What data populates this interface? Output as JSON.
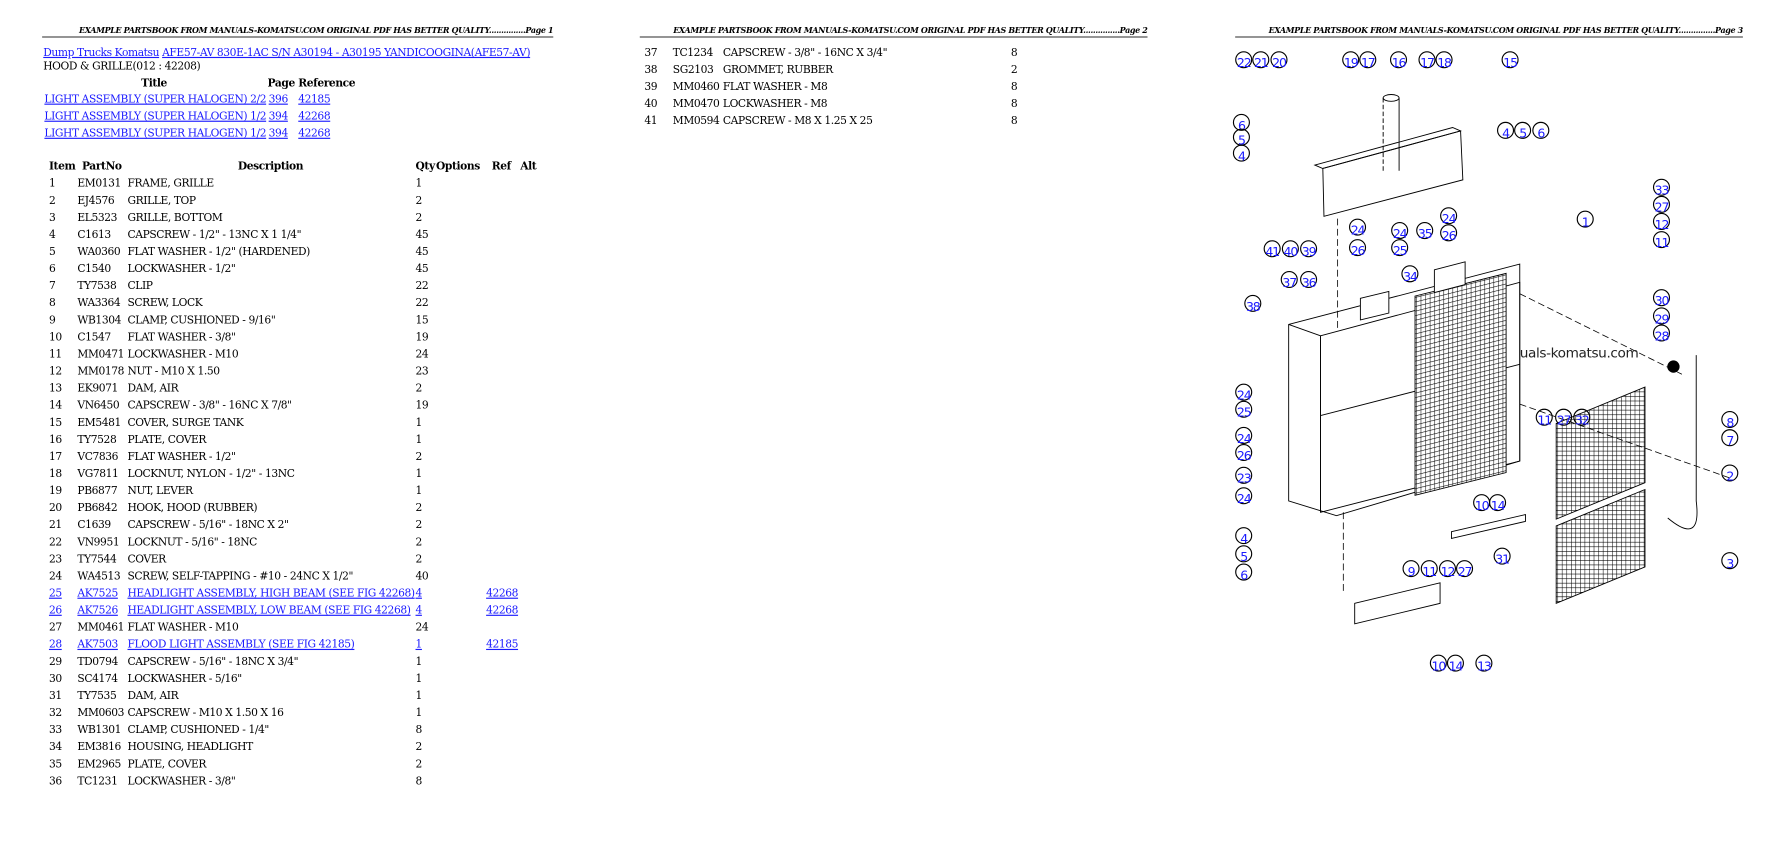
{
  "header_text": "EXAMPLE PARTSBOOK FROM MANUALS-KOMATSU.COM ORIGINAL PDF HAS BETTER QUALITY...............",
  "pages": [
    "Page 1",
    "Page 2",
    "Page 3"
  ],
  "breadcrumb": {
    "category": "Dump Trucks Komatsu",
    "model": "AFE57-AV 830E-1AC S/N A30194 - A30195 YANDICOOGINA(AFE57-AV)"
  },
  "section_title": "HOOD & GRILLE(012 : 42208)",
  "ref_table": {
    "headers": {
      "title": "Title",
      "page": "Page",
      "reference": "Reference"
    },
    "rows": [
      {
        "title": "LIGHT ASSEMBLY (SUPER HALOGEN) 2/2",
        "page": "396",
        "reference": "42185"
      },
      {
        "title": "LIGHT ASSEMBLY (SUPER HALOGEN) 1/2",
        "page": "394",
        "reference": "42268"
      },
      {
        "title": "LIGHT ASSEMBLY (SUPER HALOGEN) 1/2",
        "page": "394",
        "reference": "42268"
      }
    ]
  },
  "parts_table": {
    "headers": {
      "item": "Item",
      "partno": "PartNo",
      "description": "Description",
      "qty": "Qty",
      "options": "Options",
      "ref": "Ref",
      "alt": "Alt"
    },
    "rows": [
      {
        "item": "1",
        "partno": "EM0131",
        "description": "FRAME, GRILLE",
        "qty": "1"
      },
      {
        "item": "2",
        "partno": "EJ4576",
        "description": "GRILLE, TOP",
        "qty": "2"
      },
      {
        "item": "3",
        "partno": "EL5323",
        "description": "GRILLE, BOTTOM",
        "qty": "2"
      },
      {
        "item": "4",
        "partno": "C1613",
        "description": "CAPSCREW - 1/2\" - 13NC X 1 1/4\"",
        "qty": "45"
      },
      {
        "item": "5",
        "partno": "WA0360",
        "description": "FLAT WASHER - 1/2\" (HARDENED)",
        "qty": "45"
      },
      {
        "item": "6",
        "partno": "C1540",
        "description": "LOCKWASHER - 1/2\"",
        "qty": "45"
      },
      {
        "item": "7",
        "partno": "TY7538",
        "description": "CLIP",
        "qty": "22"
      },
      {
        "item": "8",
        "partno": "WA3364",
        "description": "SCREW, LOCK",
        "qty": "22"
      },
      {
        "item": "9",
        "partno": "WB1304",
        "description": "CLAMP, CUSHIONED - 9/16\"",
        "qty": "15"
      },
      {
        "item": "10",
        "partno": "C1547",
        "description": "FLAT WASHER - 3/8\"",
        "qty": "19"
      },
      {
        "item": "11",
        "partno": "MM0471",
        "description": "LOCKWASHER - M10",
        "qty": "24"
      },
      {
        "item": "12",
        "partno": "MM0178",
        "description": "NUT - M10 X 1.50",
        "qty": "23"
      },
      {
        "item": "13",
        "partno": "EK9071",
        "description": "DAM, AIR",
        "qty": "2"
      },
      {
        "item": "14",
        "partno": "VN6450",
        "description": "CAPSCREW - 3/8\" - 16NC X 7/8\"",
        "qty": "19"
      },
      {
        "item": "15",
        "partno": "EM5481",
        "description": "COVER, SURGE TANK",
        "qty": "1"
      },
      {
        "item": "16",
        "partno": "TY7528",
        "description": "PLATE, COVER",
        "qty": "1"
      },
      {
        "item": "17",
        "partno": "VC7836",
        "description": "FLAT WASHER - 1/2\"",
        "qty": "2"
      },
      {
        "item": "18",
        "partno": "VG7811",
        "description": "LOCKNUT, NYLON - 1/2\" - 13NC",
        "qty": "1"
      },
      {
        "item": "19",
        "partno": "PB6877",
        "description": "NUT, LEVER",
        "qty": "1"
      },
      {
        "item": "20",
        "partno": "PB6842",
        "description": "HOOK, HOOD (RUBBER)",
        "qty": "2"
      },
      {
        "item": "21",
        "partno": "C1639",
        "description": "CAPSCREW - 5/16\" - 18NC X 2\"",
        "qty": "2"
      },
      {
        "item": "22",
        "partno": "VN9951",
        "description": "LOCKNUT - 5/16\" - 18NC",
        "qty": "2"
      },
      {
        "item": "23",
        "partno": "TY7544",
        "description": "COVER",
        "qty": "2"
      },
      {
        "item": "24",
        "partno": "WA4513",
        "description": "SCREW, SELF-TAPPING - #10 - 24NC X 1/2\"",
        "qty": "40"
      },
      {
        "item": "25",
        "partno": "AK7525",
        "description": "HEADLIGHT ASSEMBLY, HIGH BEAM (SEE FIG 42268)",
        "qty": "4",
        "ref": "42268",
        "link": true
      },
      {
        "item": "26",
        "partno": "AK7526",
        "description": "HEADLIGHT ASSEMBLY, LOW BEAM (SEE FIG 42268)",
        "qty": "4",
        "ref": "42268",
        "link": true
      },
      {
        "item": "27",
        "partno": "MM0461",
        "description": "FLAT WASHER - M10",
        "qty": "24"
      },
      {
        "item": "28",
        "partno": "AK7503",
        "description": "FLOOD LIGHT ASSEMBLY (SEE FIG 42185)",
        "qty": "1",
        "ref": "42185",
        "link": true
      },
      {
        "item": "29",
        "partno": "TD0794",
        "description": "CAPSCREW - 5/16\" - 18NC X 3/4\"",
        "qty": "1"
      },
      {
        "item": "30",
        "partno": "SC4174",
        "description": "LOCKWASHER - 5/16\"",
        "qty": "1"
      },
      {
        "item": "31",
        "partno": "TY7535",
        "description": "DAM, AIR",
        "qty": "1"
      },
      {
        "item": "32",
        "partno": "MM0603",
        "description": "CAPSCREW - M10 X 1.50 X 16",
        "qty": "1"
      },
      {
        "item": "33",
        "partno": "WB1301",
        "description": "CLAMP, CUSHIONED - 1/4\"",
        "qty": "8"
      },
      {
        "item": "34",
        "partno": "EM3816",
        "description": "HOUSING, HEADLIGHT",
        "qty": "2"
      },
      {
        "item": "35",
        "partno": "EM2965",
        "description": "PLATE, COVER",
        "qty": "2"
      },
      {
        "item": "36",
        "partno": "TC1231",
        "description": "LOCKWASHER - 3/8\"",
        "qty": "8"
      },
      {
        "item": "37",
        "partno": "TC1234",
        "description": "CAPSCREW - 3/8\" - 16NC X 3/4\"",
        "qty": "8"
      },
      {
        "item": "38",
        "partno": "SG2103",
        "description": "GROMMET, RUBBER",
        "qty": "2"
      },
      {
        "item": "39",
        "partno": "MM0460",
        "description": "FLAT WASHER - M8",
        "qty": "8"
      },
      {
        "item": "40",
        "partno": "MM0470",
        "description": "LOCKWASHER - M8",
        "qty": "8"
      },
      {
        "item": "41",
        "partno": "MM0594",
        "description": "CAPSCREW - M8 X 1.25 X 25",
        "qty": "8"
      }
    ]
  },
  "diagram": {
    "watermark": "uals-komatsu.com",
    "callouts": [
      "22",
      "21",
      "20",
      "19",
      "17",
      "16",
      "17",
      "18",
      "15",
      "6",
      "5",
      "4",
      "4",
      "5",
      "6",
      "33",
      "27",
      "12",
      "11",
      "1",
      "41",
      "40",
      "39",
      "24",
      "26",
      "24",
      "25",
      "35",
      "24",
      "26",
      "37",
      "36",
      "34",
      "38",
      "30",
      "29",
      "28",
      "24",
      "25",
      "24",
      "26",
      "23",
      "24",
      "4",
      "5",
      "6",
      "11",
      "27",
      "32",
      "8",
      "7",
      "2",
      "3",
      "10",
      "14",
      "31",
      "9",
      "11",
      "12",
      "27",
      "10",
      "14",
      "13"
    ]
  }
}
